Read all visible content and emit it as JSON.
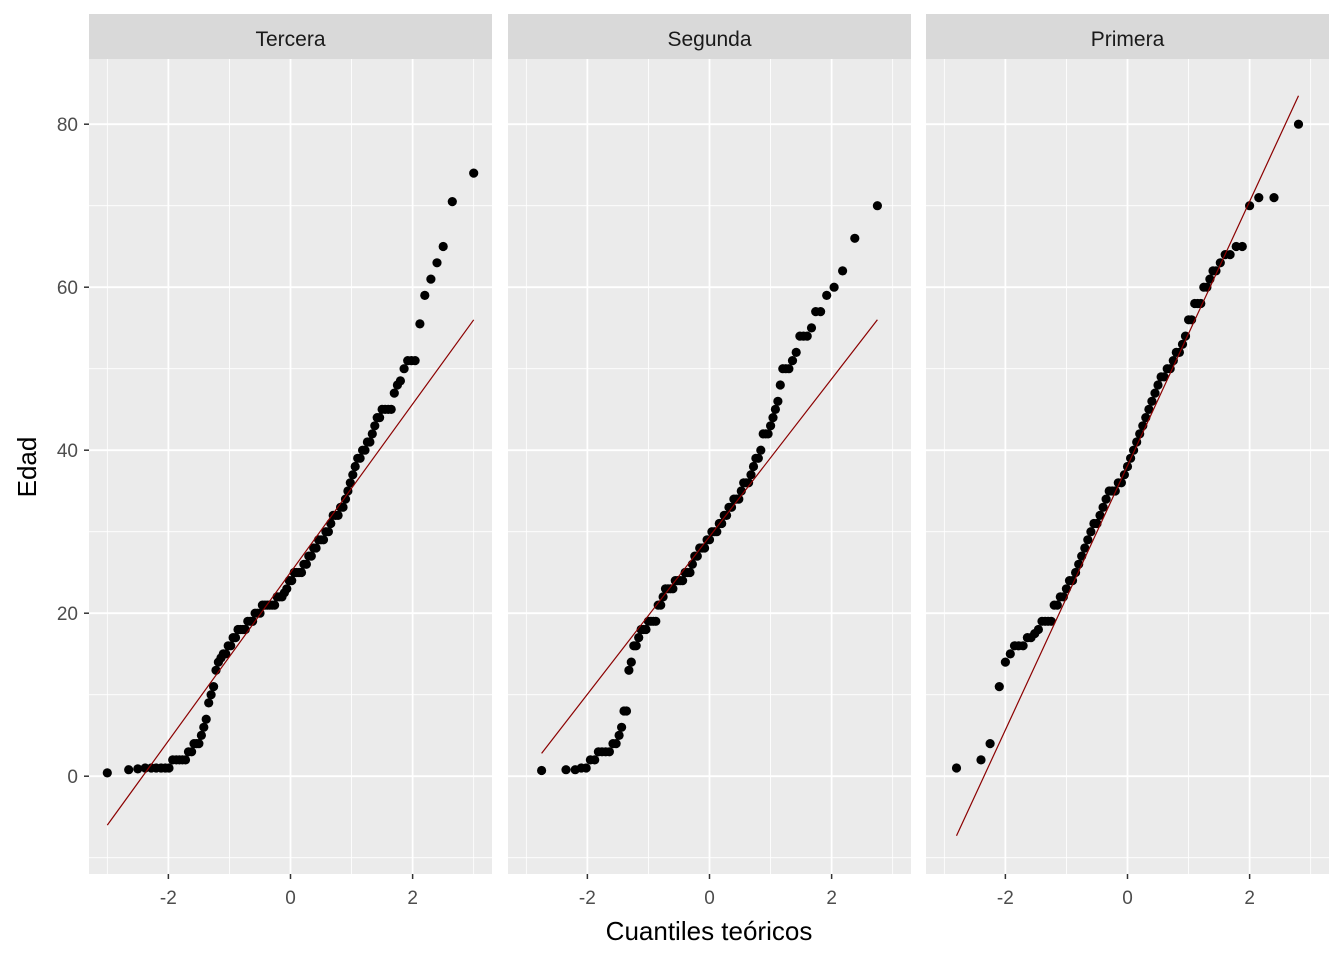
{
  "chart_data": {
    "type": "scatter",
    "facets": [
      {
        "label": "Tercera",
        "points": [
          [
            -3.0,
            0.4
          ],
          [
            -2.65,
            0.8
          ],
          [
            -2.5,
            0.9
          ],
          [
            -2.38,
            1.0
          ],
          [
            -2.28,
            1.0
          ],
          [
            -2.2,
            1.0
          ],
          [
            -2.12,
            1.0
          ],
          [
            -2.05,
            1.0
          ],
          [
            -1.99,
            1.0
          ],
          [
            -1.93,
            2.0
          ],
          [
            -1.87,
            2.0
          ],
          [
            -1.82,
            2.0
          ],
          [
            -1.77,
            2.0
          ],
          [
            -1.72,
            2.0
          ],
          [
            -1.67,
            3.0
          ],
          [
            -1.62,
            3.0
          ],
          [
            -1.58,
            4.0
          ],
          [
            -1.54,
            4.0
          ],
          [
            -1.5,
            4.0
          ],
          [
            -1.46,
            5.0
          ],
          [
            -1.42,
            6.0
          ],
          [
            -1.38,
            7.0
          ],
          [
            -1.34,
            9.0
          ],
          [
            -1.3,
            10.0
          ],
          [
            -1.26,
            11.0
          ],
          [
            -1.22,
            13.0
          ],
          [
            -1.18,
            14.0
          ],
          [
            -1.14,
            14.5
          ],
          [
            -1.1,
            15.0
          ],
          [
            -1.06,
            15.0
          ],
          [
            -1.02,
            16.0
          ],
          [
            -0.98,
            16.0
          ],
          [
            -0.94,
            17.0
          ],
          [
            -0.9,
            17.0
          ],
          [
            -0.86,
            18.0
          ],
          [
            -0.82,
            18.0
          ],
          [
            -0.78,
            18.0
          ],
          [
            -0.74,
            18.0
          ],
          [
            -0.7,
            19.0
          ],
          [
            -0.66,
            19.0
          ],
          [
            -0.62,
            19.0
          ],
          [
            -0.58,
            20.0
          ],
          [
            -0.54,
            20.0
          ],
          [
            -0.5,
            20.0
          ],
          [
            -0.46,
            21.0
          ],
          [
            -0.42,
            21.0
          ],
          [
            -0.38,
            21.0
          ],
          [
            -0.34,
            21.0
          ],
          [
            -0.3,
            21.0
          ],
          [
            -0.26,
            21.0
          ],
          [
            -0.22,
            22.0
          ],
          [
            -0.18,
            22.0
          ],
          [
            -0.14,
            22.0
          ],
          [
            -0.1,
            22.5
          ],
          [
            -0.06,
            23.0
          ],
          [
            -0.02,
            24.0
          ],
          [
            0.02,
            24.0
          ],
          [
            0.06,
            25.0
          ],
          [
            0.1,
            25.0
          ],
          [
            0.14,
            25.0
          ],
          [
            0.18,
            25.0
          ],
          [
            0.22,
            26.0
          ],
          [
            0.26,
            26.0
          ],
          [
            0.3,
            27.0
          ],
          [
            0.34,
            27.0
          ],
          [
            0.38,
            28.0
          ],
          [
            0.42,
            28.0
          ],
          [
            0.46,
            29.0
          ],
          [
            0.5,
            29.0
          ],
          [
            0.54,
            29.0
          ],
          [
            0.58,
            30.0
          ],
          [
            0.62,
            30.0
          ],
          [
            0.66,
            31.0
          ],
          [
            0.7,
            32.0
          ],
          [
            0.74,
            32.0
          ],
          [
            0.78,
            32.0
          ],
          [
            0.82,
            33.0
          ],
          [
            0.86,
            33.0
          ],
          [
            0.9,
            34.0
          ],
          [
            0.94,
            35.0
          ],
          [
            0.98,
            36.0
          ],
          [
            1.02,
            37.0
          ],
          [
            1.06,
            38.0
          ],
          [
            1.1,
            39.0
          ],
          [
            1.14,
            39.0
          ],
          [
            1.18,
            40.0
          ],
          [
            1.22,
            40.0
          ],
          [
            1.26,
            41.0
          ],
          [
            1.3,
            41.0
          ],
          [
            1.34,
            42.0
          ],
          [
            1.38,
            43.0
          ],
          [
            1.42,
            44.0
          ],
          [
            1.46,
            44.0
          ],
          [
            1.5,
            45.0
          ],
          [
            1.55,
            45.0
          ],
          [
            1.6,
            45.0
          ],
          [
            1.65,
            45.0
          ],
          [
            1.7,
            47.0
          ],
          [
            1.75,
            48.0
          ],
          [
            1.8,
            48.5
          ],
          [
            1.86,
            50.0
          ],
          [
            1.92,
            51.0
          ],
          [
            1.98,
            51.0
          ],
          [
            2.04,
            51.0
          ],
          [
            2.12,
            55.5
          ],
          [
            2.2,
            59.0
          ],
          [
            2.3,
            61.0
          ],
          [
            2.4,
            63.0
          ],
          [
            2.5,
            65.0
          ],
          [
            2.65,
            70.5
          ],
          [
            3.0,
            74.0
          ]
        ],
        "line": {
          "x": [
            -3.0,
            3.0
          ],
          "y": [
            -6.0,
            56.0
          ]
        }
      },
      {
        "label": "Segunda",
        "points": [
          [
            -2.75,
            0.7
          ],
          [
            -2.35,
            0.8
          ],
          [
            -2.2,
            0.8
          ],
          [
            -2.1,
            1.0
          ],
          [
            -2.02,
            1.0
          ],
          [
            -1.95,
            2.0
          ],
          [
            -1.88,
            2.0
          ],
          [
            -1.82,
            3.0
          ],
          [
            -1.76,
            3.0
          ],
          [
            -1.7,
            3.0
          ],
          [
            -1.64,
            3.0
          ],
          [
            -1.58,
            4.0
          ],
          [
            -1.53,
            4.0
          ],
          [
            -1.48,
            5.0
          ],
          [
            -1.44,
            6.0
          ],
          [
            -1.4,
            8.0
          ],
          [
            -1.36,
            8.0
          ],
          [
            -1.32,
            13.0
          ],
          [
            -1.28,
            14.0
          ],
          [
            -1.24,
            16.0
          ],
          [
            -1.2,
            16.0
          ],
          [
            -1.16,
            17.0
          ],
          [
            -1.12,
            18.0
          ],
          [
            -1.08,
            18.0
          ],
          [
            -1.04,
            18.0
          ],
          [
            -1.0,
            19.0
          ],
          [
            -0.96,
            19.0
          ],
          [
            -0.92,
            19.0
          ],
          [
            -0.88,
            19.0
          ],
          [
            -0.84,
            21.0
          ],
          [
            -0.8,
            21.0
          ],
          [
            -0.76,
            22.0
          ],
          [
            -0.72,
            23.0
          ],
          [
            -0.68,
            23.0
          ],
          [
            -0.64,
            23.0
          ],
          [
            -0.6,
            23.0
          ],
          [
            -0.56,
            24.0
          ],
          [
            -0.52,
            24.0
          ],
          [
            -0.48,
            24.0
          ],
          [
            -0.44,
            24.0
          ],
          [
            -0.4,
            25.0
          ],
          [
            -0.36,
            25.0
          ],
          [
            -0.32,
            25.0
          ],
          [
            -0.28,
            26.0
          ],
          [
            -0.24,
            27.0
          ],
          [
            -0.2,
            27.0
          ],
          [
            -0.16,
            28.0
          ],
          [
            -0.12,
            28.0
          ],
          [
            -0.08,
            28.0
          ],
          [
            -0.04,
            29.0
          ],
          [
            0.0,
            29.0
          ],
          [
            0.04,
            30.0
          ],
          [
            0.08,
            30.0
          ],
          [
            0.12,
            30.0
          ],
          [
            0.16,
            31.0
          ],
          [
            0.2,
            31.0
          ],
          [
            0.24,
            32.0
          ],
          [
            0.28,
            32.0
          ],
          [
            0.32,
            33.0
          ],
          [
            0.36,
            33.0
          ],
          [
            0.4,
            34.0
          ],
          [
            0.44,
            34.0
          ],
          [
            0.48,
            34.0
          ],
          [
            0.52,
            35.0
          ],
          [
            0.56,
            36.0
          ],
          [
            0.6,
            36.0
          ],
          [
            0.64,
            36.0
          ],
          [
            0.68,
            37.0
          ],
          [
            0.72,
            38.0
          ],
          [
            0.76,
            39.0
          ],
          [
            0.8,
            39.0
          ],
          [
            0.84,
            40.0
          ],
          [
            0.88,
            42.0
          ],
          [
            0.92,
            42.0
          ],
          [
            0.96,
            42.0
          ],
          [
            1.0,
            43.0
          ],
          [
            1.04,
            44.0
          ],
          [
            1.08,
            45.0
          ],
          [
            1.12,
            46.0
          ],
          [
            1.16,
            48.0
          ],
          [
            1.2,
            50.0
          ],
          [
            1.25,
            50.0
          ],
          [
            1.3,
            50.0
          ],
          [
            1.36,
            51.0
          ],
          [
            1.42,
            52.0
          ],
          [
            1.48,
            54.0
          ],
          [
            1.54,
            54.0
          ],
          [
            1.6,
            54.0
          ],
          [
            1.67,
            55.0
          ],
          [
            1.74,
            57.0
          ],
          [
            1.82,
            57.0
          ],
          [
            1.92,
            59.0
          ],
          [
            2.04,
            60.0
          ],
          [
            2.18,
            62.0
          ],
          [
            2.38,
            66.0
          ],
          [
            2.75,
            70.0
          ]
        ],
        "line": {
          "x": [
            -2.75,
            2.75
          ],
          "y": [
            2.8,
            56.0
          ]
        }
      },
      {
        "label": "Primera",
        "points": [
          [
            -2.8,
            1.0
          ],
          [
            -2.4,
            2.0
          ],
          [
            -2.25,
            4.0
          ],
          [
            -2.1,
            11.0
          ],
          [
            -2.0,
            14.0
          ],
          [
            -1.92,
            15.0
          ],
          [
            -1.85,
            16.0
          ],
          [
            -1.78,
            16.0
          ],
          [
            -1.71,
            16.0
          ],
          [
            -1.64,
            17.0
          ],
          [
            -1.58,
            17.0
          ],
          [
            -1.52,
            17.5
          ],
          [
            -1.46,
            18.0
          ],
          [
            -1.4,
            19.0
          ],
          [
            -1.35,
            19.0
          ],
          [
            -1.3,
            19.0
          ],
          [
            -1.25,
            19.0
          ],
          [
            -1.2,
            21.0
          ],
          [
            -1.15,
            21.0
          ],
          [
            -1.1,
            22.0
          ],
          [
            -1.05,
            22.0
          ],
          [
            -1.0,
            23.0
          ],
          [
            -0.95,
            24.0
          ],
          [
            -0.9,
            24.0
          ],
          [
            -0.85,
            25.0
          ],
          [
            -0.8,
            26.0
          ],
          [
            -0.75,
            27.0
          ],
          [
            -0.7,
            28.0
          ],
          [
            -0.65,
            29.0
          ],
          [
            -0.6,
            30.0
          ],
          [
            -0.55,
            31.0
          ],
          [
            -0.5,
            31.0
          ],
          [
            -0.45,
            32.0
          ],
          [
            -0.4,
            33.0
          ],
          [
            -0.35,
            34.0
          ],
          [
            -0.3,
            35.0
          ],
          [
            -0.25,
            35.0
          ],
          [
            -0.2,
            35.0
          ],
          [
            -0.15,
            36.0
          ],
          [
            -0.1,
            36.0
          ],
          [
            -0.05,
            37.0
          ],
          [
            0.0,
            38.0
          ],
          [
            0.05,
            39.0
          ],
          [
            0.1,
            40.0
          ],
          [
            0.15,
            41.0
          ],
          [
            0.2,
            42.0
          ],
          [
            0.25,
            43.0
          ],
          [
            0.3,
            44.0
          ],
          [
            0.35,
            45.0
          ],
          [
            0.4,
            46.0
          ],
          [
            0.45,
            47.0
          ],
          [
            0.5,
            48.0
          ],
          [
            0.55,
            49.0
          ],
          [
            0.6,
            49.0
          ],
          [
            0.65,
            50.0
          ],
          [
            0.7,
            50.0
          ],
          [
            0.75,
            51.0
          ],
          [
            0.8,
            52.0
          ],
          [
            0.85,
            52.0
          ],
          [
            0.9,
            53.0
          ],
          [
            0.95,
            54.0
          ],
          [
            1.0,
            56.0
          ],
          [
            1.05,
            56.0
          ],
          [
            1.1,
            58.0
          ],
          [
            1.15,
            58.0
          ],
          [
            1.2,
            58.0
          ],
          [
            1.25,
            60.0
          ],
          [
            1.3,
            60.0
          ],
          [
            1.35,
            61.0
          ],
          [
            1.4,
            62.0
          ],
          [
            1.45,
            62.0
          ],
          [
            1.52,
            63.0
          ],
          [
            1.6,
            64.0
          ],
          [
            1.68,
            64.0
          ],
          [
            1.78,
            65.0
          ],
          [
            1.88,
            65.0
          ],
          [
            2.0,
            70.0
          ],
          [
            2.15,
            71.0
          ],
          [
            2.4,
            71.0
          ],
          [
            2.8,
            80.0
          ]
        ],
        "line": {
          "x": [
            -2.8,
            2.8
          ],
          "y": [
            -7.3,
            83.5
          ]
        }
      }
    ],
    "xlabel": "Cuantiles teóricos",
    "ylabel": "Edad",
    "xlim": [
      -3.3,
      3.3
    ],
    "ylim": [
      -12.0,
      88.0
    ],
    "xticks": [
      -2,
      0,
      2
    ],
    "xtick_labels": [
      "-2",
      "0",
      "2"
    ],
    "yticks": [
      0,
      20,
      40,
      60,
      80
    ],
    "ytick_labels": [
      "0",
      "20",
      "40",
      "60",
      "80"
    ],
    "grid": true,
    "colors": {
      "point": "#000000",
      "line": "#8b0000",
      "panel": "#ebebeb",
      "strip": "#d9d9d9",
      "grid": "#ffffff"
    }
  }
}
